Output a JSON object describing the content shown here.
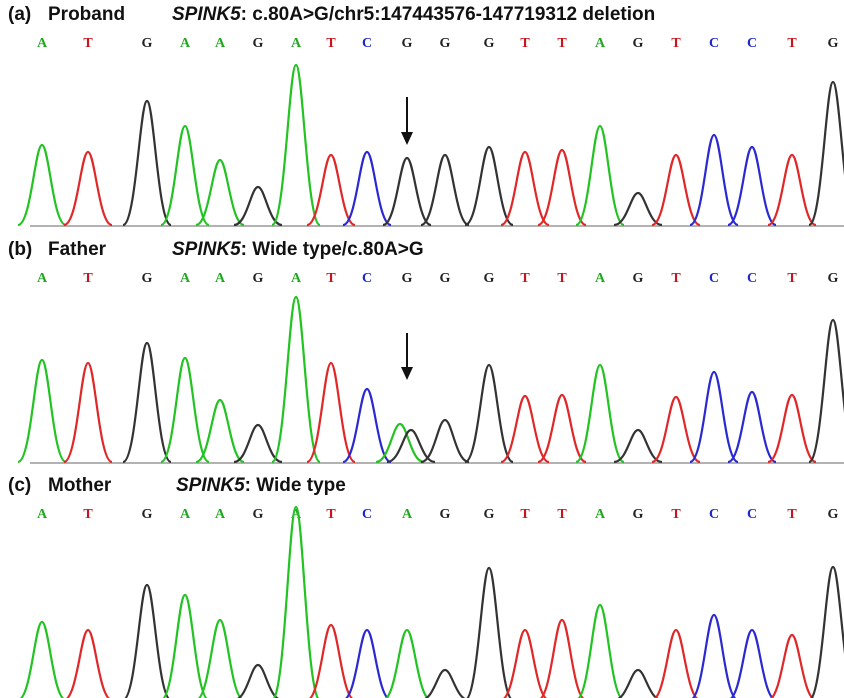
{
  "panels": [
    {
      "label": "(a)",
      "name": "Proband",
      "gene": "SPINK5",
      "description": ": c.80A>G/chr5:147443576-147719312 deletion",
      "bases": [
        "A",
        "T",
        "G",
        "A",
        "A",
        "G",
        "A",
        "T",
        "C",
        "G",
        "G",
        "G",
        "T",
        "T",
        "A",
        "G",
        "T",
        "C",
        "C",
        "T",
        "G"
      ]
    },
    {
      "label": "(b)",
      "name": "Father",
      "gene": "SPINK5",
      "description": ": Wide type/c.80A>G",
      "bases": [
        "A",
        "T",
        "G",
        "A",
        "A",
        "G",
        "A",
        "T",
        "C",
        "G",
        "G",
        "G",
        "T",
        "T",
        "A",
        "G",
        "T",
        "C",
        "C",
        "T",
        "G"
      ]
    },
    {
      "label": "(c)",
      "name": "Mother",
      "gene": "SPINK5",
      "description": ": Wide type",
      "bases": [
        "A",
        "T",
        "G",
        "A",
        "A",
        "G",
        "A",
        "T",
        "C",
        "A",
        "G",
        "G",
        "T",
        "T",
        "A",
        "G",
        "T",
        "C",
        "C",
        "T",
        "G"
      ]
    }
  ]
}
